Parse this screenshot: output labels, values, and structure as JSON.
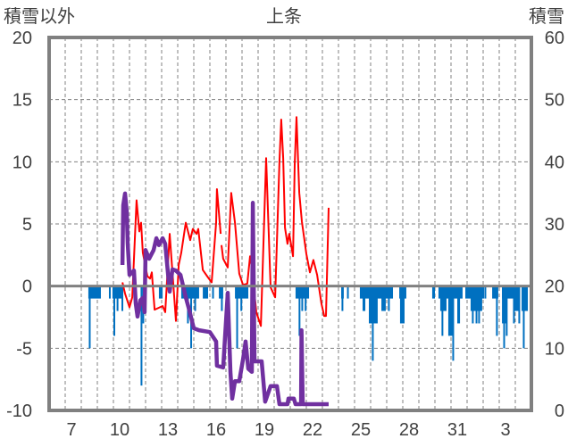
{
  "chart_data": {
    "type": "line",
    "title": "上条",
    "ylabel_left": "積雪以外",
    "ylabel_right": "積雪",
    "ylim_left": [
      -10,
      20
    ],
    "ylim_right": [
      0,
      60
    ],
    "yticks_left": [
      "20",
      "15",
      "10",
      "5",
      "0",
      "-5",
      "-10"
    ],
    "yticks_right": [
      "60",
      "50",
      "40",
      "30",
      "20",
      "10",
      "0"
    ],
    "xlim_days": [
      0,
      30
    ],
    "xticks": [
      {
        "label": "7",
        "day": 1
      },
      {
        "label": "10",
        "day": 4
      },
      {
        "label": "13",
        "day": 7
      },
      {
        "label": "16",
        "day": 10
      },
      {
        "label": "19",
        "day": 13
      },
      {
        "label": "22",
        "day": 16
      },
      {
        "label": "25",
        "day": 19
      },
      {
        "label": "28",
        "day": 22
      },
      {
        "label": "31",
        "day": 25
      },
      {
        "label": "3",
        "day": 28
      }
    ],
    "grid": true,
    "colors": {
      "red": "#ff0000",
      "purple": "#7030a0",
      "blue": "#0070c0",
      "axis": "#808080",
      "grid": "#808080"
    },
    "series": [
      {
        "name": "red-line",
        "axis": "left",
        "points": [
          [
            4.56,
            0.3
          ],
          [
            4.72,
            -0.6
          ],
          [
            5.0,
            -1.7
          ],
          [
            5.17,
            -0.9
          ],
          [
            5.44,
            6.9
          ],
          [
            5.61,
            4.4
          ],
          [
            5.72,
            5.1
          ],
          [
            5.83,
            2.7
          ],
          [
            6.11,
            0.8
          ],
          [
            6.28,
            0.6
          ],
          [
            6.39,
            1.1
          ],
          [
            6.56,
            -1.9
          ],
          [
            7.06,
            -1.6
          ],
          [
            7.22,
            -2.1
          ],
          [
            7.5,
            4.2
          ],
          [
            7.89,
            -2.8
          ],
          [
            8.06,
            1.7
          ],
          [
            8.22,
            2.7
          ],
          [
            8.5,
            5.1
          ],
          [
            8.78,
            3.7
          ],
          [
            8.94,
            4.6
          ],
          [
            9.17,
            4.2
          ],
          [
            9.28,
            4.6
          ],
          [
            9.56,
            1.3
          ],
          [
            9.83,
            0.8
          ],
          [
            10.11,
            0.3
          ],
          [
            10.39,
            5.1
          ],
          [
            10.44,
            7.8
          ],
          [
            10.67,
            4.2
          ],
          null,
          [
            10.72,
            3.3
          ],
          [
            10.83,
            2.2
          ],
          [
            11.11,
            1.5
          ],
          [
            11.33,
            7.5
          ],
          [
            11.56,
            5.1
          ],
          [
            11.83,
            1.0
          ],
          [
            12.06,
            0.1
          ],
          [
            12.33,
            0.2
          ],
          [
            12.5,
            2.4
          ],
          [
            12.61,
            1.5
          ],
          [
            12.89,
            -2.1
          ],
          [
            13.17,
            -3.2
          ],
          [
            13.5,
            10.3
          ],
          [
            13.78,
            -0.1
          ],
          [
            14.06,
            -0.9
          ],
          [
            14.33,
            10.0
          ],
          [
            14.44,
            13.4
          ],
          [
            14.56,
            10.3
          ],
          [
            14.67,
            4.7
          ],
          [
            14.83,
            3.4
          ],
          [
            14.94,
            4.2
          ],
          [
            15.17,
            2.4
          ],
          [
            15.28,
            9.8
          ],
          [
            15.39,
            13.6
          ],
          [
            15.56,
            7.5
          ],
          [
            15.72,
            5.2
          ],
          [
            16.0,
            2.6
          ],
          [
            16.22,
            1.1
          ],
          [
            16.44,
            2.1
          ],
          [
            16.67,
            0.9
          ],
          [
            16.94,
            -1.4
          ],
          [
            17.11,
            -2.4
          ],
          [
            17.22,
            -2.4
          ],
          [
            17.39,
            6.3
          ]
        ]
      },
      {
        "name": "purple-line",
        "axis": "right",
        "points": [
          [
            4.56,
            23.4
          ],
          [
            4.61,
            33.0
          ],
          [
            4.72,
            34.9
          ],
          [
            4.83,
            32.0
          ],
          [
            4.89,
            26.8
          ],
          [
            5.0,
            21.8
          ],
          [
            5.28,
            22.5
          ],
          [
            5.39,
            17.2
          ],
          [
            5.5,
            15.1
          ],
          [
            5.67,
            17.7
          ],
          [
            5.83,
            18.1
          ],
          [
            5.94,
            15.8
          ],
          [
            6.0,
            25.8
          ],
          [
            6.22,
            24.4
          ],
          [
            6.5,
            25.8
          ],
          [
            6.67,
            27.7
          ],
          [
            6.83,
            26.6
          ],
          [
            7.06,
            27.7
          ],
          [
            7.22,
            26.8
          ],
          [
            7.5,
            19.1
          ],
          [
            7.67,
            22.7
          ],
          [
            7.89,
            22.5
          ],
          [
            8.17,
            21.8
          ],
          [
            8.5,
            18.2
          ],
          [
            8.72,
            16.1
          ],
          [
            9.0,
            13.2
          ],
          [
            9.33,
            12.9
          ],
          [
            10.0,
            12.6
          ],
          [
            10.39,
            11.1
          ],
          [
            10.44,
            7.2
          ],
          [
            10.83,
            6.9
          ],
          [
            11.11,
            18.9
          ],
          [
            11.28,
            6.2
          ],
          [
            11.39,
            1.9
          ],
          [
            11.56,
            4.7
          ],
          [
            11.83,
            4.7
          ],
          [
            12.06,
            8.2
          ],
          [
            12.22,
            11.1
          ],
          [
            12.39,
            6.7
          ],
          [
            12.61,
            6.2
          ],
          [
            12.67,
            33.4
          ],
          [
            12.78,
            7.9
          ],
          [
            13.22,
            7.9
          ],
          [
            13.44,
            1.4
          ],
          [
            13.78,
            3.9
          ],
          [
            14.17,
            3.9
          ],
          [
            14.33,
            1.0
          ],
          [
            14.83,
            1.0
          ],
          [
            14.89,
            1.9
          ],
          [
            15.22,
            1.9
          ],
          [
            15.33,
            1.0
          ],
          [
            15.67,
            1.0
          ],
          [
            15.7,
            12.9
          ],
          [
            15.78,
            1.0
          ],
          [
            17.39,
            1.0
          ]
        ]
      }
    ],
    "bars": {
      "name": "blue-bars",
      "axis": "left",
      "segments": [
        [
          2.44,
          3.22,
          -1
        ],
        [
          2.47,
          2.55,
          -5
        ],
        [
          3.72,
          3.8,
          -1
        ],
        [
          3.94,
          4.56,
          -1
        ],
        [
          4.0,
          4.11,
          -4
        ],
        [
          4.2,
          4.27,
          -2
        ],
        [
          4.5,
          4.56,
          -2
        ],
        [
          5.69,
          5.76,
          -8
        ],
        [
          5.8,
          5.86,
          -3
        ],
        [
          6.83,
          7.06,
          -1
        ],
        [
          8.22,
          9.33,
          -1
        ],
        [
          8.58,
          8.66,
          -3
        ],
        [
          8.78,
          8.89,
          -5
        ],
        [
          9.03,
          9.1,
          -2
        ],
        [
          9.56,
          9.89,
          -1
        ],
        [
          10.14,
          10.2,
          -1
        ],
        [
          10.56,
          10.83,
          -1
        ],
        [
          10.69,
          10.76,
          -2
        ],
        [
          11.56,
          12.39,
          -1
        ],
        [
          11.64,
          11.71,
          -5
        ],
        [
          11.9,
          11.98,
          -2
        ],
        [
          15.33,
          16.17,
          -1
        ],
        [
          15.52,
          15.6,
          -4
        ],
        [
          15.69,
          15.76,
          -2
        ],
        [
          15.9,
          15.98,
          -2
        ],
        [
          18.17,
          18.33,
          -1
        ],
        [
          18.19,
          18.26,
          -2
        ],
        [
          18.53,
          18.6,
          -1
        ],
        [
          19.33,
          21.39,
          -1
        ],
        [
          19.5,
          19.67,
          -2
        ],
        [
          19.89,
          20.44,
          -3
        ],
        [
          20.08,
          20.15,
          -6
        ],
        [
          20.67,
          20.94,
          -2
        ],
        [
          21.08,
          21.15,
          -2
        ],
        [
          21.78,
          22.22,
          -1
        ],
        [
          21.83,
          22.11,
          -3
        ],
        [
          23.83,
          24.0,
          -1
        ],
        [
          24.22,
          25.72,
          -1
        ],
        [
          24.33,
          24.72,
          -2
        ],
        [
          24.41,
          24.48,
          -4
        ],
        [
          24.83,
          25.17,
          -4
        ],
        [
          25.08,
          25.15,
          -6
        ],
        [
          25.39,
          25.56,
          -3
        ],
        [
          25.89,
          27.06,
          -1
        ],
        [
          26.22,
          26.94,
          -2
        ],
        [
          26.3,
          26.37,
          -3
        ],
        [
          26.53,
          26.6,
          -3
        ],
        [
          26.69,
          26.76,
          -3
        ],
        [
          27.08,
          27.15,
          -1
        ],
        [
          27.56,
          27.94,
          -1
        ],
        [
          27.8,
          27.87,
          -4
        ],
        [
          28.17,
          28.89,
          -1
        ],
        [
          28.17,
          28.44,
          -3
        ],
        [
          28.25,
          28.32,
          -5
        ],
        [
          28.41,
          28.48,
          -4
        ],
        [
          28.86,
          28.93,
          -3
        ],
        [
          28.94,
          29.22,
          -2
        ],
        [
          29.19,
          29.26,
          -3
        ],
        [
          29.39,
          29.78,
          -2
        ],
        [
          29.47,
          29.54,
          -5
        ]
      ]
    }
  }
}
